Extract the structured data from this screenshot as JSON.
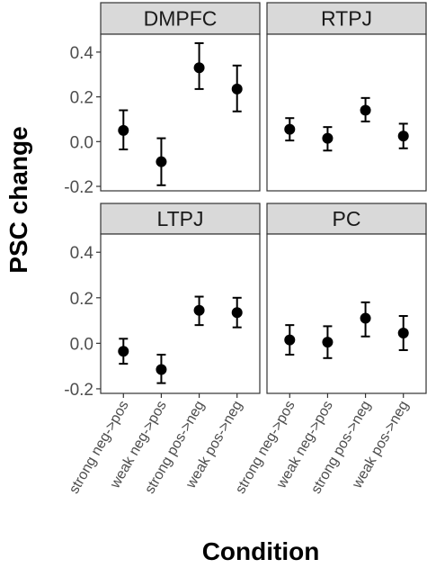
{
  "chart_data": {
    "type": "scatter",
    "subtype": "point-with-error-bars, faceted 2x2",
    "xlabel": "Condition",
    "ylabel": "PSC change",
    "categories": [
      "strong neg->pos",
      "weak neg->pos",
      "strong pos->neg",
      "weak pos->neg"
    ],
    "ylim": [
      -0.22,
      0.48
    ],
    "yticks": [
      -0.2,
      0.0,
      0.2,
      0.4
    ],
    "ytick_labels": [
      "-0.2",
      "0.0",
      "0.2",
      "0.4"
    ],
    "grid": false,
    "panels": [
      {
        "title": "DMPFC",
        "values": [
          0.05,
          -0.09,
          0.33,
          0.235
        ],
        "lower": [
          -0.035,
          -0.195,
          0.235,
          0.135
        ],
        "upper": [
          0.14,
          0.015,
          0.44,
          0.34
        ]
      },
      {
        "title": "RTPJ",
        "values": [
          0.055,
          0.015,
          0.14,
          0.025
        ],
        "lower": [
          0.005,
          -0.04,
          0.09,
          -0.03
        ],
        "upper": [
          0.105,
          0.065,
          0.195,
          0.08
        ]
      },
      {
        "title": "LTPJ",
        "values": [
          -0.035,
          -0.115,
          0.145,
          0.135
        ],
        "lower": [
          -0.09,
          -0.175,
          0.08,
          0.07
        ],
        "upper": [
          0.02,
          -0.05,
          0.205,
          0.2
        ]
      },
      {
        "title": "PC",
        "values": [
          0.015,
          0.005,
          0.11,
          0.045
        ],
        "lower": [
          -0.05,
          -0.065,
          0.03,
          -0.03
        ],
        "upper": [
          0.08,
          0.075,
          0.18,
          0.12
        ]
      }
    ],
    "colors": {
      "point": "#000000",
      "strip_fill": "#d9d9d9",
      "panel_border": "#333333"
    }
  }
}
